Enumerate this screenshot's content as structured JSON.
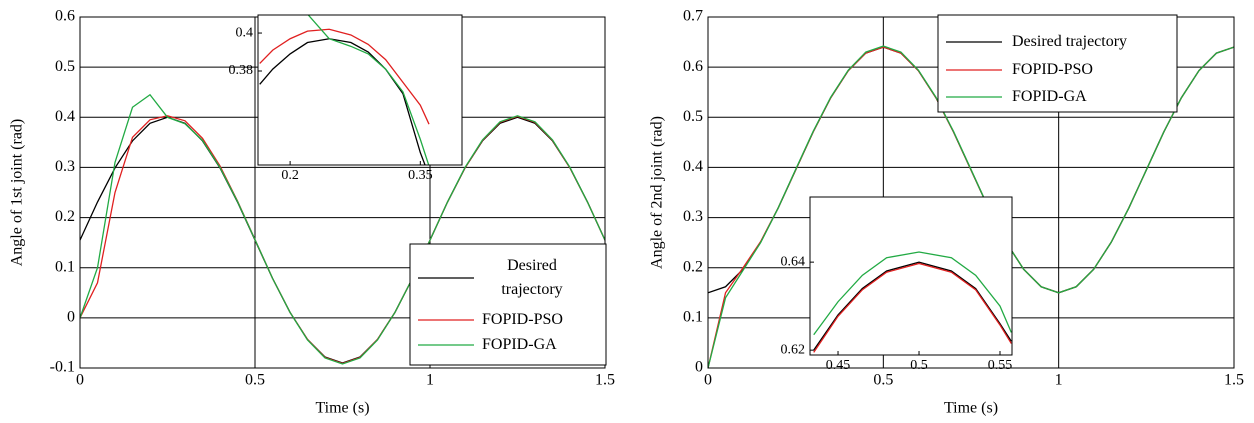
{
  "chart_data": [
    {
      "type": "line",
      "xlabel": "Time (s)",
      "ylabel": "Angle of 1st joint (rad)",
      "x": [
        0,
        0.05,
        0.1,
        0.15,
        0.2,
        0.25,
        0.3,
        0.35,
        0.4,
        0.45,
        0.5,
        0.55,
        0.6,
        0.65,
        0.7,
        0.75,
        0.8,
        0.85,
        0.9,
        0.95,
        1,
        1.05,
        1.1,
        1.15,
        1.2,
        1.25,
        1.3,
        1.35,
        1.4,
        1.45,
        1.5
      ],
      "series": [
        {
          "name": "Desired trajectory",
          "color": "#000000",
          "values": [
            0.155,
            0.231,
            0.299,
            0.353,
            0.388,
            0.4,
            0.388,
            0.353,
            0.299,
            0.231,
            0.155,
            0.079,
            0.011,
            -0.043,
            -0.078,
            -0.09,
            -0.078,
            -0.043,
            0.011,
            0.079,
            0.155,
            0.231,
            0.299,
            0.353,
            0.388,
            0.4,
            0.388,
            0.353,
            0.299,
            0.231,
            0.155
          ]
        },
        {
          "name": "FOPID-PSO",
          "color": "#e02020",
          "values": [
            0,
            0.07,
            0.25,
            0.36,
            0.395,
            0.403,
            0.393,
            0.358,
            0.303,
            0.233,
            0.156,
            0.079,
            0.011,
            -0.043,
            -0.079,
            -0.091,
            -0.079,
            -0.043,
            0.011,
            0.079,
            0.155,
            0.231,
            0.299,
            0.354,
            0.39,
            0.402,
            0.39,
            0.354,
            0.299,
            0.231,
            0.155
          ]
        },
        {
          "name": "FOPID-GA",
          "color": "#22aa44",
          "values": [
            0,
            0.1,
            0.31,
            0.42,
            0.445,
            0.4,
            0.387,
            0.354,
            0.3,
            0.232,
            0.156,
            0.079,
            0.011,
            -0.044,
            -0.08,
            -0.092,
            -0.08,
            -0.044,
            0.011,
            0.079,
            0.155,
            0.231,
            0.3,
            0.355,
            0.391,
            0.403,
            0.391,
            0.355,
            0.3,
            0.231,
            0.155
          ]
        }
      ],
      "xlim": [
        0,
        1.5
      ],
      "xticks": [
        0,
        0.5,
        1,
        1.5
      ],
      "ylim": [
        -0.1,
        0.6
      ],
      "yticks": [
        -0.1,
        0,
        0.1,
        0.2,
        0.3,
        0.4,
        0.5,
        0.6
      ],
      "grid": true,
      "legend": "lower right"
    },
    {
      "type": "line",
      "x": [
        0.165,
        0.18,
        0.2,
        0.22,
        0.245,
        0.27,
        0.29,
        0.31,
        0.33,
        0.35,
        0.36
      ],
      "series": [
        {
          "name": "Desired trajectory",
          "color": "#000000",
          "values": [
            0.373,
            0.381,
            0.389,
            0.395,
            0.397,
            0.395,
            0.39,
            0.381,
            0.368,
            0.337,
            0.325
          ]
        },
        {
          "name": "FOPID-PSO",
          "color": "#e02020",
          "values": [
            0.384,
            0.391,
            0.397,
            0.401,
            0.402,
            0.399,
            0.394,
            0.386,
            0.374,
            0.362,
            0.352
          ]
        },
        {
          "name": "FOPID-GA",
          "color": "#22aa44",
          "values": [
            null,
            null,
            null,
            0.41,
            0.397,
            0.393,
            0.389,
            0.381,
            0.369,
            0.344,
            0.33
          ]
        }
      ],
      "xlim": [
        0.163,
        0.398
      ],
      "xticks": [
        0.2,
        0.35
      ],
      "ylim": [
        0.3305,
        0.4095
      ],
      "yticks": [
        0.38,
        0.4
      ],
      "grid": false
    },
    {
      "type": "line",
      "xlabel": "Time (s)",
      "ylabel": "Angle of 2nd joint (rad)",
      "x": [
        0,
        0.05,
        0.1,
        0.15,
        0.2,
        0.25,
        0.3,
        0.35,
        0.4,
        0.45,
        0.5,
        0.55,
        0.6,
        0.65,
        0.7,
        0.75,
        0.8,
        0.85,
        0.9,
        0.95,
        1,
        1.05,
        1.1,
        1.15,
        1.2,
        1.25,
        1.3,
        1.35,
        1.4,
        1.45,
        1.5
      ],
      "series": [
        {
          "name": "Desired trajectory",
          "color": "#000000",
          "values": [
            0.15,
            0.162,
            0.197,
            0.251,
            0.319,
            0.395,
            0.471,
            0.539,
            0.593,
            0.628,
            0.64,
            0.628,
            0.593,
            0.539,
            0.471,
            0.395,
            0.319,
            0.251,
            0.197,
            0.162,
            0.15,
            0.162,
            0.197,
            0.251,
            0.319,
            0.395,
            0.471,
            0.539,
            0.593,
            0.628,
            0.64
          ]
        },
        {
          "name": "FOPID-PSO",
          "color": "#e02020",
          "values": [
            0,
            0.15,
            0.2,
            0.252,
            0.319,
            0.395,
            0.471,
            0.539,
            0.593,
            0.628,
            0.64,
            0.628,
            0.593,
            0.539,
            0.471,
            0.395,
            0.319,
            0.251,
            0.197,
            0.162,
            0.15,
            0.162,
            0.197,
            0.251,
            0.319,
            0.395,
            0.471,
            0.539,
            0.593,
            0.628,
            0.64
          ]
        },
        {
          "name": "FOPID-GA",
          "color": "#22aa44",
          "values": [
            0,
            0.14,
            0.195,
            0.25,
            0.319,
            0.396,
            0.472,
            0.54,
            0.594,
            0.63,
            0.642,
            0.63,
            0.594,
            0.54,
            0.472,
            0.396,
            0.319,
            0.251,
            0.197,
            0.162,
            0.15,
            0.162,
            0.197,
            0.251,
            0.319,
            0.395,
            0.471,
            0.539,
            0.593,
            0.628,
            0.64
          ]
        }
      ],
      "xlim": [
        0,
        1.5
      ],
      "xticks": [
        0,
        0.5,
        1,
        1.5
      ],
      "ylim": [
        0,
        0.7
      ],
      "yticks": [
        0,
        0.1,
        0.2,
        0.3,
        0.4,
        0.5,
        0.6,
        0.7
      ],
      "grid": true,
      "legend": "upper center"
    },
    {
      "type": "line",
      "x": [
        0.435,
        0.45,
        0.465,
        0.48,
        0.5,
        0.52,
        0.535,
        0.55,
        0.557
      ],
      "series": [
        {
          "name": "Desired trajectory",
          "color": "#000000",
          "values": [
            0.62,
            0.628,
            0.634,
            0.638,
            0.64,
            0.638,
            0.634,
            0.626,
            0.622
          ]
        },
        {
          "name": "FOPID-PSO",
          "color": "#e02020",
          "values": [
            0.6195,
            0.6277,
            0.6337,
            0.6377,
            0.6397,
            0.6377,
            0.6337,
            0.6257,
            0.6215
          ]
        },
        {
          "name": "FOPID-GA",
          "color": "#22aa44",
          "values": [
            0.6235,
            0.631,
            0.637,
            0.641,
            0.6423,
            0.641,
            0.637,
            0.63,
            0.624
          ]
        }
      ],
      "xlim": [
        0.4327,
        0.5574
      ],
      "xticks": [
        0.45,
        0.5,
        0.55
      ],
      "ylim": [
        0.6189,
        0.6548
      ],
      "yticks": [
        0.62,
        0.64
      ],
      "grid": false
    }
  ]
}
